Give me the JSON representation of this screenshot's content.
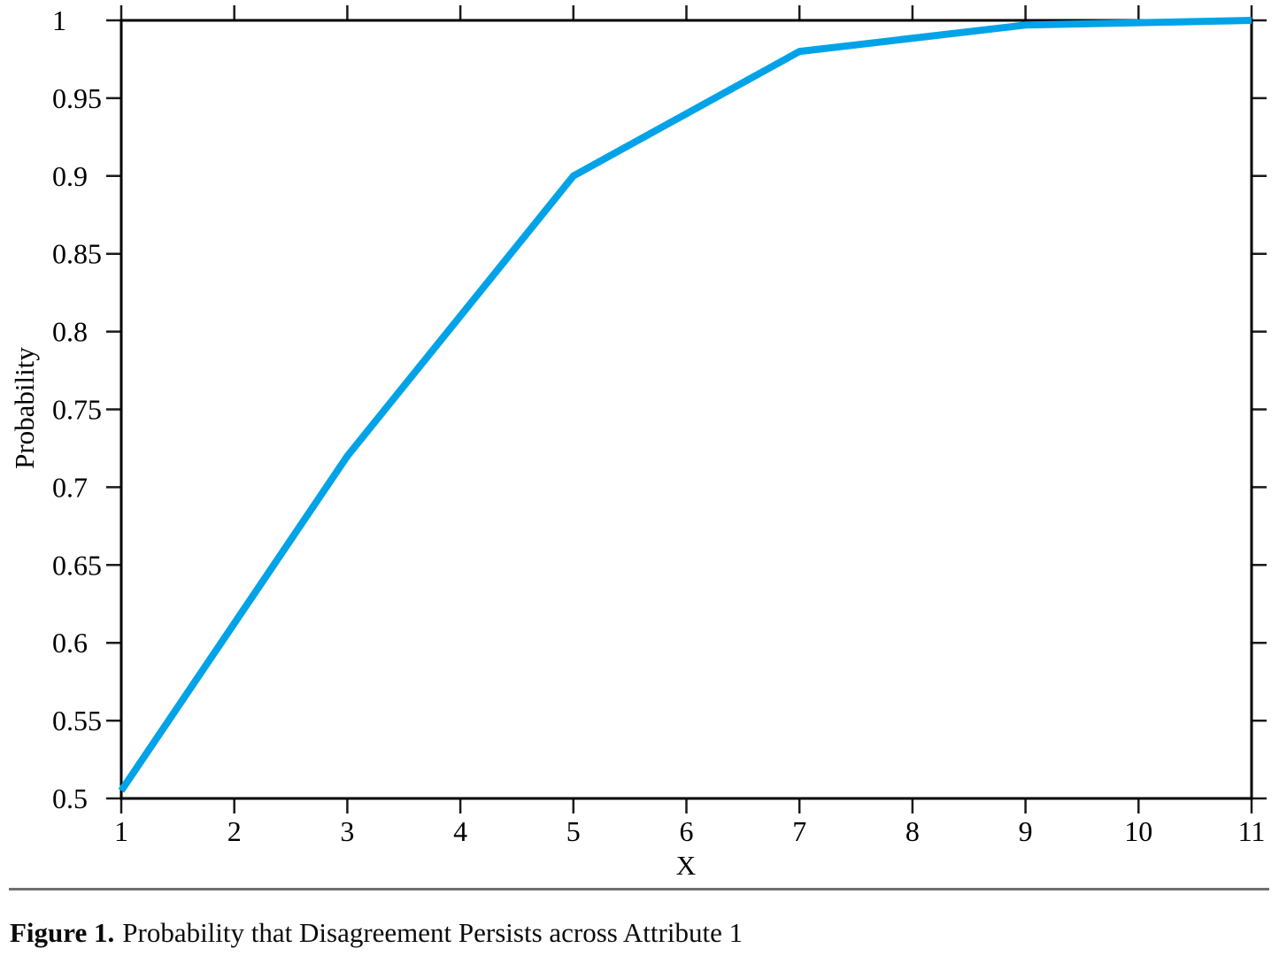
{
  "figure": {
    "caption_label": "Figure 1.",
    "caption_text": "Probability that Disagreement Persists across Attribute 1"
  },
  "chart_data": {
    "type": "line",
    "title": "",
    "xlabel": "X",
    "ylabel": "Probability",
    "x": [
      1,
      3,
      5,
      7,
      9,
      11
    ],
    "y": [
      0.505,
      0.72,
      0.9,
      0.98,
      0.997,
      1.0
    ],
    "xlim": [
      1,
      11
    ],
    "ylim": [
      0.5,
      1.0
    ],
    "x_ticks": [
      1,
      2,
      3,
      4,
      5,
      6,
      7,
      8,
      9,
      10,
      11
    ],
    "x_tick_labels": [
      "1",
      "2",
      "3",
      "4",
      "5",
      "6",
      "7",
      "8",
      "9",
      "10",
      "11"
    ],
    "y_ticks": [
      0.5,
      0.55,
      0.6,
      0.65,
      0.7,
      0.75,
      0.8,
      0.85,
      0.9,
      0.95,
      1.0
    ],
    "y_tick_labels": [
      "0.5",
      "0.55",
      "0.6",
      "0.65",
      "0.7",
      "0.75",
      "0.8",
      "0.85",
      "0.9",
      "0.95",
      "1"
    ],
    "grid": false,
    "legend": false,
    "tick_direction": "outward, mirrored on all four sides",
    "line_color": "#00A3E8",
    "axis_color": "#000000",
    "tick_color": "#1a1a1a"
  }
}
